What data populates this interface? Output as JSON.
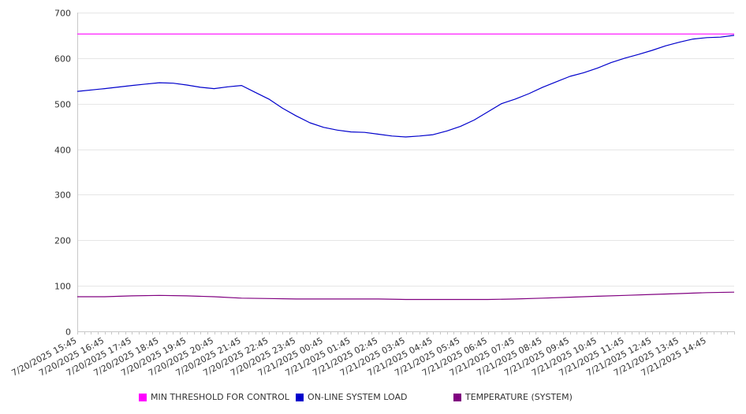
{
  "chart_data": {
    "type": "line",
    "title": "",
    "xlabel": "",
    "ylabel": "",
    "ylim": [
      0,
      700
    ],
    "yticks": [
      0,
      100,
      200,
      300,
      400,
      500,
      600,
      700
    ],
    "grid": true,
    "legend_position": "bottom",
    "x_tick_labels": [
      "7/20/2025 15:45",
      "7/20/2025 16:45",
      "7/20/2025 17:45",
      "7/20/2025 18:45",
      "7/20/2025 19:45",
      "7/20/2025 20:45",
      "7/20/2025 21:45",
      "7/20/2025 22:45",
      "7/20/2025 23:45",
      "7/21/2025 00:45",
      "7/21/2025 01:45",
      "7/21/2025 02:45",
      "7/21/2025 03:45",
      "7/21/2025 04:45",
      "7/21/2025 05:45",
      "7/21/2025 06:45",
      "7/21/2025 07:45",
      "7/21/2025 08:45",
      "7/21/2025 09:45",
      "7/21/2025 10:45",
      "7/21/2025 11:45",
      "7/21/2025 12:45",
      "7/21/2025 13:45",
      "7/21/2025 14:45"
    ],
    "x_start": "7/20/2025 15:45",
    "x_end": "7/21/2025 15:45",
    "series": [
      {
        "name": "MIN THRESHOLD FOR CONTROL",
        "color": "#ff00ff",
        "x": [
          "7/20/2025 15:45",
          "7/21/2025 15:45"
        ],
        "y": [
          653,
          653
        ]
      },
      {
        "name": "ON-LINE SYSTEM LOAD",
        "color": "#0000cc",
        "x": [
          "7/20/2025 15:45",
          "7/20/2025 16:45",
          "7/20/2025 17:45",
          "7/20/2025 18:15",
          "7/20/2025 18:45",
          "7/20/2025 19:15",
          "7/20/2025 19:45",
          "7/20/2025 20:15",
          "7/20/2025 20:45",
          "7/20/2025 21:15",
          "7/20/2025 21:45",
          "7/20/2025 22:15",
          "7/20/2025 22:45",
          "7/20/2025 23:15",
          "7/20/2025 23:45",
          "7/21/2025 00:15",
          "7/21/2025 00:45",
          "7/21/2025 01:15",
          "7/21/2025 01:45",
          "7/21/2025 02:15",
          "7/21/2025 02:45",
          "7/21/2025 03:15",
          "7/21/2025 03:45",
          "7/21/2025 04:15",
          "7/21/2025 04:45",
          "7/21/2025 05:15",
          "7/21/2025 05:45",
          "7/21/2025 06:15",
          "7/21/2025 06:45",
          "7/21/2025 07:15",
          "7/21/2025 07:45",
          "7/21/2025 08:15",
          "7/21/2025 08:45",
          "7/21/2025 09:15",
          "7/21/2025 09:45",
          "7/21/2025 10:15",
          "7/21/2025 10:45",
          "7/21/2025 11:15",
          "7/21/2025 11:45",
          "7/21/2025 12:15",
          "7/21/2025 12:45",
          "7/21/2025 13:15",
          "7/21/2025 13:45",
          "7/21/2025 14:15",
          "7/21/2025 14:45",
          "7/21/2025 15:15",
          "7/21/2025 15:45"
        ],
        "y": [
          527,
          533,
          540,
          543,
          546,
          545,
          541,
          536,
          533,
          537,
          540,
          525,
          510,
          490,
          473,
          458,
          448,
          442,
          438,
          437,
          433,
          429,
          427,
          429,
          432,
          440,
          450,
          464,
          482,
          500,
          510,
          522,
          536,
          548,
          560,
          568,
          578,
          590,
          600,
          608,
          617,
          627,
          635,
          642,
          645,
          646,
          650
        ]
      },
      {
        "name": "TEMPERATURE (SYSTEM)",
        "color": "#800080",
        "x": [
          "7/20/2025 15:45",
          "7/20/2025 16:45",
          "7/20/2025 17:45",
          "7/20/2025 18:45",
          "7/20/2025 19:45",
          "7/20/2025 20:45",
          "7/20/2025 21:45",
          "7/20/2025 22:45",
          "7/20/2025 23:45",
          "7/21/2025 00:45",
          "7/21/2025 01:45",
          "7/21/2025 02:45",
          "7/21/2025 03:45",
          "7/21/2025 04:45",
          "7/21/2025 05:45",
          "7/21/2025 06:45",
          "7/21/2025 07:45",
          "7/21/2025 08:45",
          "7/21/2025 09:45",
          "7/21/2025 10:45",
          "7/21/2025 11:45",
          "7/21/2025 12:45",
          "7/21/2025 13:45",
          "7/21/2025 14:45",
          "7/21/2025 15:45"
        ],
        "y": [
          76,
          76,
          78,
          79,
          78,
          76,
          73,
          72,
          71,
          71,
          71,
          71,
          70,
          70,
          70,
          70,
          71,
          73,
          75,
          77,
          79,
          81,
          83,
          85,
          86
        ]
      }
    ]
  }
}
